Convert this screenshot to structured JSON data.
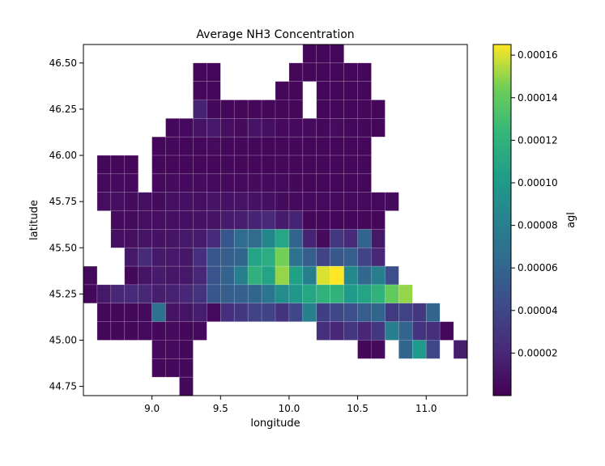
{
  "chart_data": {
    "type": "heatmap",
    "title": "Average NH3 Concentration",
    "xlabel": "longitude",
    "ylabel": "latitude",
    "xlim": [
      8.5,
      11.3
    ],
    "ylim": [
      44.7,
      46.6
    ],
    "xticks": [
      9.0,
      9.5,
      10.0,
      10.5,
      11.0
    ],
    "xtick_labels": [
      "9.0",
      "9.5",
      "10.0",
      "10.5",
      "11.0"
    ],
    "yticks": [
      44.75,
      45.0,
      45.25,
      45.5,
      45.75,
      46.0,
      46.25,
      46.5
    ],
    "ytick_labels": [
      "44.75",
      "45.00",
      "45.25",
      "45.50",
      "45.75",
      "46.00",
      "46.25",
      "46.50"
    ],
    "grid": false,
    "colormap": "viridis",
    "colorbar": {
      "label": "agl",
      "range": [
        0.0,
        0.000165
      ],
      "ticks": [
        2e-05,
        4e-05,
        6e-05,
        8e-05,
        0.0001,
        0.00012,
        0.00014,
        0.00016
      ],
      "tick_labels": [
        "0.00002",
        "0.00004",
        "0.00006",
        "0.00008",
        "0.00010",
        "0.00012",
        "0.00014",
        "0.00016"
      ]
    },
    "grid_cells": {
      "lon_start": 8.5,
      "lat_top": 46.6,
      "dlon": 0.1,
      "dlat": 0.1,
      "unit": 1e-06,
      "rows": [
        [
          null,
          null,
          null,
          null,
          null,
          null,
          null,
          null,
          null,
          null,
          null,
          null,
          null,
          null,
          null,
          null,
          3,
          3,
          3,
          null,
          null,
          null,
          null,
          null,
          null,
          null,
          null,
          null
        ],
        [
          null,
          null,
          null,
          null,
          null,
          null,
          null,
          null,
          3,
          3,
          null,
          null,
          null,
          null,
          null,
          3,
          3,
          3,
          3,
          3,
          3,
          null,
          null,
          null,
          null,
          null,
          null,
          null
        ],
        [
          null,
          null,
          null,
          null,
          null,
          null,
          null,
          null,
          3,
          3,
          null,
          null,
          null,
          null,
          3,
          3,
          null,
          3,
          3,
          3,
          3,
          null,
          null,
          null,
          null,
          null,
          null,
          null
        ],
        [
          null,
          null,
          null,
          null,
          null,
          null,
          null,
          null,
          18,
          4,
          3,
          3,
          3,
          3,
          3,
          3,
          null,
          3,
          3,
          3,
          3,
          3,
          null,
          null,
          null,
          null,
          null,
          null
        ],
        [
          null,
          null,
          null,
          null,
          null,
          null,
          4,
          5,
          10,
          12,
          7,
          6,
          10,
          8,
          5,
          5,
          6,
          4,
          6,
          4,
          4,
          3,
          null,
          null,
          null,
          null,
          null,
          null
        ],
        [
          null,
          null,
          null,
          null,
          null,
          3,
          4,
          3,
          4,
          6,
          4,
          4,
          4,
          3,
          3,
          4,
          3,
          3,
          3,
          3,
          3,
          null,
          null,
          null,
          null,
          null,
          null,
          null
        ],
        [
          null,
          3,
          3,
          3,
          null,
          3,
          3,
          3,
          3,
          3,
          4,
          3,
          3,
          3,
          3,
          3,
          3,
          3,
          3,
          3,
          3,
          null,
          null,
          null,
          null,
          null,
          null,
          null
        ],
        [
          null,
          5,
          5,
          5,
          null,
          5,
          6,
          5,
          6,
          5,
          5,
          5,
          6,
          5,
          5,
          4,
          3,
          3,
          3,
          3,
          3,
          null,
          null,
          null,
          null,
          null,
          null,
          null
        ],
        [
          null,
          7,
          7,
          6,
          8,
          6,
          8,
          8,
          8,
          10,
          9,
          10,
          9,
          8,
          6,
          5,
          5,
          5,
          5,
          5,
          5,
          5,
          6,
          null,
          null,
          null,
          null,
          null
        ],
        [
          null,
          null,
          6,
          6,
          7,
          7,
          8,
          8,
          9,
          10,
          14,
          15,
          18,
          22,
          14,
          18,
          4,
          3,
          3,
          3,
          3,
          3,
          null,
          null,
          null,
          null,
          null,
          null
        ],
        [
          null,
          null,
          8,
          8,
          10,
          9,
          10,
          12,
          14,
          22,
          50,
          65,
          65,
          85,
          110,
          60,
          18,
          6,
          30,
          22,
          60,
          12,
          null,
          null,
          null,
          null,
          null,
          null
        ],
        [
          null,
          null,
          null,
          12,
          22,
          12,
          12,
          11,
          25,
          50,
          55,
          60,
          108,
          115,
          145,
          70,
          55,
          38,
          52,
          55,
          38,
          20,
          null,
          null,
          null,
          null,
          null,
          null
        ],
        [
          5,
          null,
          null,
          4,
          10,
          14,
          11,
          12,
          20,
          48,
          58,
          80,
          118,
          108,
          150,
          105,
          80,
          160,
          165,
          88,
          62,
          80,
          45,
          null,
          null,
          null,
          null,
          null
        ],
        [
          4,
          12,
          20,
          22,
          20,
          15,
          17,
          20,
          28,
          50,
          55,
          56,
          60,
          72,
          90,
          98,
          110,
          120,
          120,
          100,
          108,
          120,
          140,
          150,
          null,
          null,
          null,
          null
        ],
        [
          null,
          3,
          4,
          4,
          6,
          70,
          10,
          10,
          15,
          5,
          25,
          30,
          38,
          38,
          28,
          40,
          80,
          35,
          40,
          45,
          55,
          60,
          32,
          38,
          30,
          60,
          null,
          null
        ],
        [
          null,
          3,
          4,
          4,
          5,
          4,
          6,
          4,
          5,
          null,
          null,
          null,
          null,
          null,
          null,
          null,
          null,
          25,
          20,
          30,
          20,
          30,
          80,
          60,
          28,
          25,
          3,
          null
        ],
        [
          null,
          null,
          null,
          null,
          null,
          5,
          5,
          4,
          null,
          null,
          null,
          null,
          null,
          null,
          null,
          null,
          null,
          null,
          null,
          null,
          4,
          6,
          null,
          60,
          100,
          40,
          null,
          15
        ],
        [
          null,
          null,
          null,
          null,
          null,
          4,
          4,
          4,
          null,
          null,
          null,
          null,
          null,
          null,
          null,
          null,
          null,
          null,
          null,
          null,
          null,
          null,
          null,
          null,
          null,
          null,
          null,
          null
        ],
        [
          null,
          null,
          null,
          null,
          null,
          null,
          null,
          4,
          null,
          null,
          null,
          null,
          null,
          null,
          null,
          null,
          null,
          null,
          null,
          null,
          null,
          null,
          null,
          null,
          null,
          null,
          null,
          null
        ]
      ]
    }
  }
}
